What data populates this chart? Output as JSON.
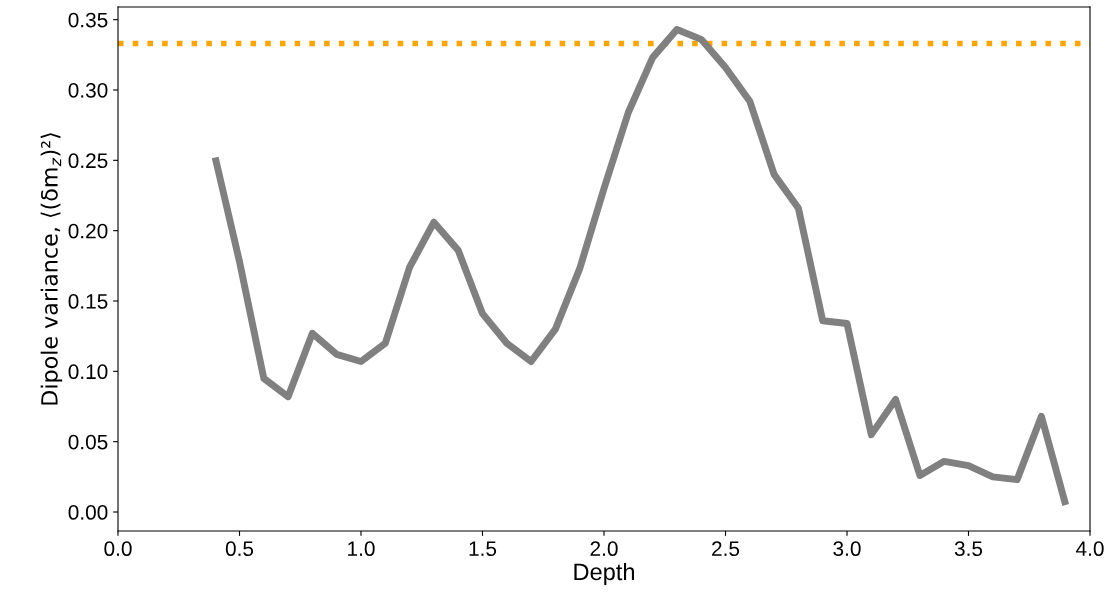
{
  "chart_data": {
    "type": "line",
    "xlabel": "Depth",
    "ylabel": "Dipole variance, ⟨(δm$_{z}$)²⟩",
    "x": [
      0.4,
      0.5,
      0.6,
      0.7,
      0.8,
      0.9,
      1.0,
      1.1,
      1.2,
      1.3,
      1.4,
      1.5,
      1.6,
      1.7,
      1.8,
      1.9,
      2.0,
      2.1,
      2.2,
      2.3,
      2.4,
      2.5,
      2.6,
      2.7,
      2.8,
      2.9,
      3.0,
      3.1,
      3.2,
      3.3,
      3.4,
      3.5,
      3.6,
      3.7,
      3.8,
      3.9
    ],
    "series": [
      {
        "color": "#808080",
        "values": [
          0.252,
          0.178,
          0.095,
          0.082,
          0.127,
          0.112,
          0.107,
          0.12,
          0.174,
          0.206,
          0.186,
          0.141,
          0.12,
          0.107,
          0.13,
          0.173,
          0.23,
          0.284,
          0.323,
          0.343,
          0.336,
          0.316,
          0.292,
          0.24,
          0.216,
          0.136,
          0.134,
          0.055,
          0.08,
          0.026,
          0.036,
          0.033,
          0.025,
          0.023,
          0.068,
          0.005
        ]
      }
    ],
    "ref_lines": [
      {
        "axis": "y",
        "value": 0.333,
        "color": "#ffa500",
        "line_style": "dotted"
      }
    ],
    "xlim": [
      0.0,
      4.0
    ],
    "xticks": [
      {
        "value": 0,
        "label": "0.0"
      },
      0.5,
      {
        "value": 1,
        "label": "1.0"
      },
      1.5,
      {
        "value": 2,
        "label": "2.0"
      },
      2.5,
      {
        "value": 3,
        "label": "3.0"
      },
      3.5,
      {
        "value": 4,
        "label": "4.0"
      }
    ],
    "ylim": [
      -0.0135,
      0.359
    ],
    "yticks": [
      {
        "value": 0,
        "label": "0.00"
      },
      0.05,
      {
        "value": 0.1,
        "label": "0.10"
      },
      0.15,
      {
        "value": 0.2,
        "label": "0.20"
      },
      0.25,
      {
        "value": 0.3,
        "label": "0.30"
      },
      0.35
    ],
    "grid": false,
    "legend": false,
    "line_style": "solid",
    "marker": "none"
  }
}
